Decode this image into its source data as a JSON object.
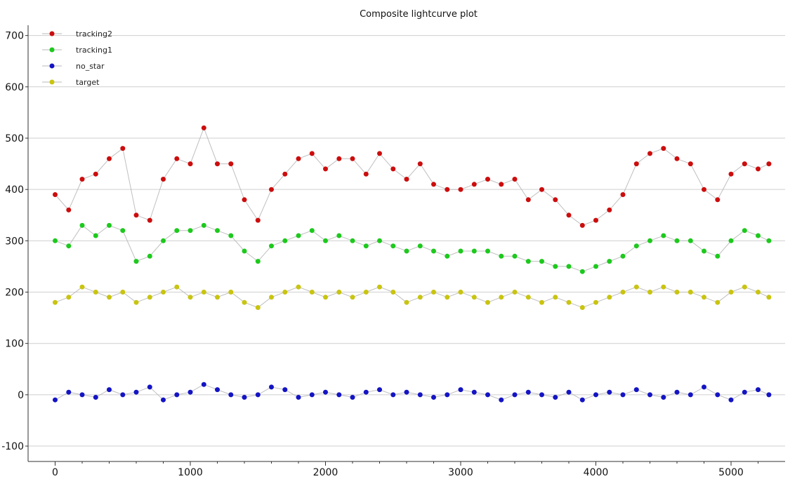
{
  "chart_data": {
    "type": "scatter",
    "title": "Composite lightcurve plot",
    "xlabel": "",
    "ylabel": "",
    "xlim": [
      -200,
      5400
    ],
    "ylim": [
      -130,
      720
    ],
    "x_ticks": [
      0,
      1000,
      2000,
      3000,
      4000,
      5000
    ],
    "y_ticks": [
      -100,
      0,
      100,
      200,
      300,
      400,
      500,
      600,
      700
    ],
    "x_tick_labels": [
      "0",
      "1000",
      "2000",
      "3000",
      "4000",
      "5000"
    ],
    "y_tick_labels": [
      "-100",
      "0",
      "100",
      "200",
      "300",
      "400",
      "500",
      "600",
      "700"
    ],
    "grid": true,
    "legend_position": "top-left",
    "legend": [
      "tracking2",
      "tracking1",
      "no_star",
      "target"
    ],
    "series": [
      {
        "name": "tracking2",
        "color": "#cc0d0d",
        "x": [
          0,
          100,
          200,
          300,
          400,
          500,
          600,
          700,
          800,
          900,
          1000,
          1100,
          1200,
          1300,
          1400,
          1500,
          1600,
          1700,
          1800,
          1900,
          2000,
          2100,
          2200,
          2300,
          2400,
          2500,
          2600,
          2700,
          2800,
          2900,
          3000,
          3100,
          3200,
          3300,
          3400,
          3500,
          3600,
          3700,
          3800,
          3900,
          4000,
          4100,
          4200,
          4300,
          4400,
          4500,
          4600,
          4700,
          4800,
          4900,
          5000,
          5100,
          5200,
          5280
        ],
        "y": [
          390,
          360,
          420,
          430,
          460,
          480,
          350,
          340,
          420,
          460,
          450,
          520,
          450,
          450,
          380,
          340,
          400,
          430,
          460,
          470,
          440,
          460,
          460,
          430,
          470,
          440,
          420,
          450,
          410,
          400,
          400,
          410,
          420,
          410,
          420,
          380,
          400,
          380,
          350,
          330,
          340,
          360,
          390,
          450,
          470,
          480,
          460,
          450,
          400,
          380,
          430,
          450,
          440,
          450
        ]
      },
      {
        "name": "tracking1",
        "color": "#1dc91d",
        "x": [
          0,
          100,
          200,
          300,
          400,
          500,
          600,
          700,
          800,
          900,
          1000,
          1100,
          1200,
          1300,
          1400,
          1500,
          1600,
          1700,
          1800,
          1900,
          2000,
          2100,
          2200,
          2300,
          2400,
          2500,
          2600,
          2700,
          2800,
          2900,
          3000,
          3100,
          3200,
          3300,
          3400,
          3500,
          3600,
          3700,
          3800,
          3900,
          4000,
          4100,
          4200,
          4300,
          4400,
          4500,
          4600,
          4700,
          4800,
          4900,
          5000,
          5100,
          5200,
          5280
        ],
        "y": [
          300,
          290,
          330,
          310,
          330,
          320,
          260,
          270,
          300,
          320,
          320,
          330,
          320,
          310,
          280,
          260,
          290,
          300,
          310,
          320,
          300,
          310,
          300,
          290,
          300,
          290,
          280,
          290,
          280,
          270,
          280,
          280,
          280,
          270,
          270,
          260,
          260,
          250,
          250,
          240,
          250,
          260,
          270,
          290,
          300,
          310,
          300,
          300,
          280,
          270,
          300,
          320,
          310,
          300
        ]
      },
      {
        "name": "no_star",
        "color": "#1414c4",
        "x": [
          0,
          100,
          200,
          300,
          400,
          500,
          600,
          700,
          800,
          900,
          1000,
          1100,
          1200,
          1300,
          1400,
          1500,
          1600,
          1700,
          1800,
          1900,
          2000,
          2100,
          2200,
          2300,
          2400,
          2500,
          2600,
          2700,
          2800,
          2900,
          3000,
          3100,
          3200,
          3300,
          3400,
          3500,
          3600,
          3700,
          3800,
          3900,
          4000,
          4100,
          4200,
          4300,
          4400,
          4500,
          4600,
          4700,
          4800,
          4900,
          5000,
          5100,
          5200,
          5280
        ],
        "y": [
          -10,
          5,
          0,
          -5,
          10,
          0,
          5,
          15,
          -10,
          0,
          5,
          20,
          10,
          0,
          -5,
          0,
          15,
          10,
          -5,
          0,
          5,
          0,
          -5,
          5,
          10,
          0,
          5,
          0,
          -5,
          0,
          10,
          5,
          0,
          -10,
          0,
          5,
          0,
          -5,
          5,
          -10,
          0,
          5,
          0,
          10,
          0,
          -5,
          5,
          0,
          15,
          0,
          -10,
          5,
          10,
          0
        ]
      },
      {
        "name": "target",
        "color": "#c9c410",
        "x": [
          0,
          100,
          200,
          300,
          400,
          500,
          600,
          700,
          800,
          900,
          1000,
          1100,
          1200,
          1300,
          1400,
          1500,
          1600,
          1700,
          1800,
          1900,
          2000,
          2100,
          2200,
          2300,
          2400,
          2500,
          2600,
          2700,
          2800,
          2900,
          3000,
          3100,
          3200,
          3300,
          3400,
          3500,
          3600,
          3700,
          3800,
          3900,
          4000,
          4100,
          4200,
          4300,
          4400,
          4500,
          4600,
          4700,
          4800,
          4900,
          5000,
          5100,
          5200,
          5280
        ],
        "y": [
          180,
          190,
          210,
          200,
          190,
          200,
          180,
          190,
          200,
          210,
          190,
          200,
          190,
          200,
          180,
          170,
          190,
          200,
          210,
          200,
          190,
          200,
          190,
          200,
          210,
          200,
          180,
          190,
          200,
          190,
          200,
          190,
          180,
          190,
          200,
          190,
          180,
          190,
          180,
          170,
          180,
          190,
          200,
          210,
          200,
          210,
          200,
          200,
          190,
          180,
          200,
          210,
          200,
          190
        ]
      }
    ]
  },
  "colors": {
    "tracking2": "#cc0d0d",
    "tracking1": "#1dc91d",
    "no_star": "#1414c4",
    "target": "#c9c410",
    "grid": "#cfcfcf",
    "connector": "#b8b8b8"
  }
}
